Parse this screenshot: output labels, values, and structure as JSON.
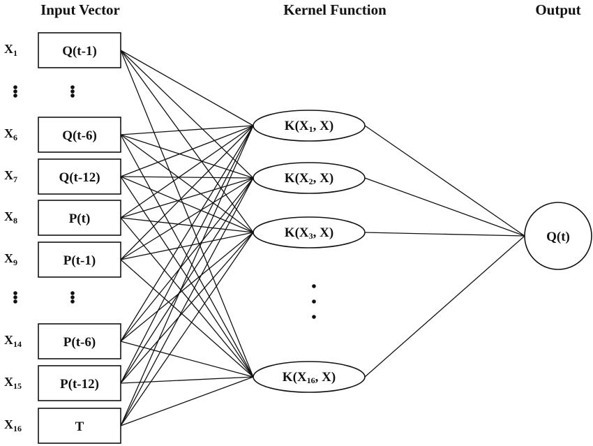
{
  "headers": {
    "input": "Input Vector",
    "kernel": "Kernel Function",
    "output": "Output"
  },
  "inputs": [
    {
      "var": "X",
      "sub": "1",
      "label": "Q(t-1)"
    },
    {
      "var": "X",
      "sub": "6",
      "label": "Q(t-6)"
    },
    {
      "var": "X",
      "sub": "7",
      "label": "Q(t-12)"
    },
    {
      "var": "X",
      "sub": "8",
      "label": "P(t)"
    },
    {
      "var": "X",
      "sub": "9",
      "label": "P(t-1)"
    },
    {
      "var": "X",
      "sub": "14",
      "label": "P(t-6)"
    },
    {
      "var": "X",
      "sub": "15",
      "label": "P(t-12)"
    },
    {
      "var": "X",
      "sub": "16",
      "label": "T"
    }
  ],
  "kernels": [
    {
      "pre": "K(X",
      "sub": "1",
      "post": ", X)"
    },
    {
      "pre": "K(X",
      "sub": "2",
      "post": ", X)"
    },
    {
      "pre": "K(X",
      "sub": "3",
      "post": ", X)"
    },
    {
      "pre": "K(X",
      "sub": "16",
      "post": ", X)"
    }
  ],
  "output": {
    "label": "Q(t)"
  },
  "colors": {
    "stroke": "#111111",
    "background": "#ffffff"
  }
}
